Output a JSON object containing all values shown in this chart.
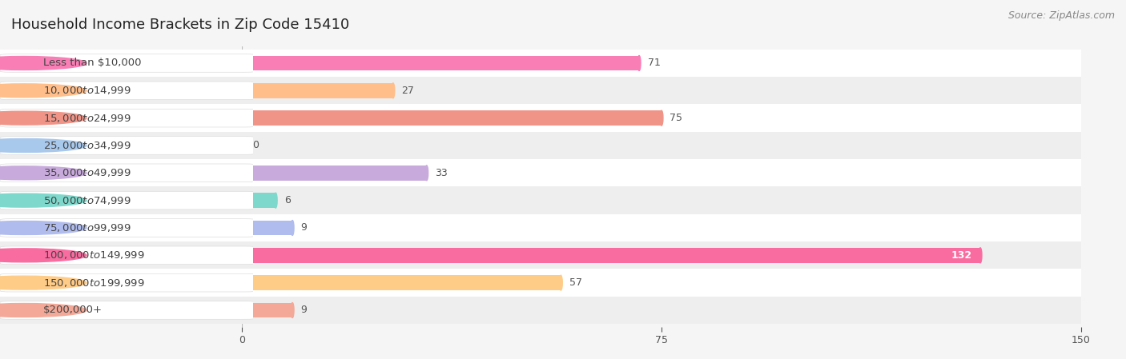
{
  "title": "Household Income Brackets in Zip Code 15410",
  "source": "Source: ZipAtlas.com",
  "categories": [
    "Less than $10,000",
    "$10,000 to $14,999",
    "$15,000 to $24,999",
    "$25,000 to $34,999",
    "$35,000 to $49,999",
    "$50,000 to $74,999",
    "$75,000 to $99,999",
    "$100,000 to $149,999",
    "$150,000 to $199,999",
    "$200,000+"
  ],
  "values": [
    71,
    27,
    75,
    0,
    33,
    6,
    9,
    132,
    57,
    9
  ],
  "colors": [
    "#F97EB5",
    "#FFBE8A",
    "#F09488",
    "#A8C8EC",
    "#C8AADC",
    "#7ED8CC",
    "#B0BCED",
    "#F96CA0",
    "#FFCC88",
    "#F4A898"
  ],
  "xlim": [
    0,
    150
  ],
  "xticks": [
    0,
    75,
    150
  ],
  "background_color": "#f5f5f5",
  "row_colors": [
    "#ffffff",
    "#eeeeee"
  ],
  "title_fontsize": 13,
  "label_fontsize": 9.5,
  "value_fontsize": 9,
  "source_fontsize": 9,
  "label_color": "#444444",
  "value_color_dark": "#555555",
  "value_color_light": "#ffffff"
}
